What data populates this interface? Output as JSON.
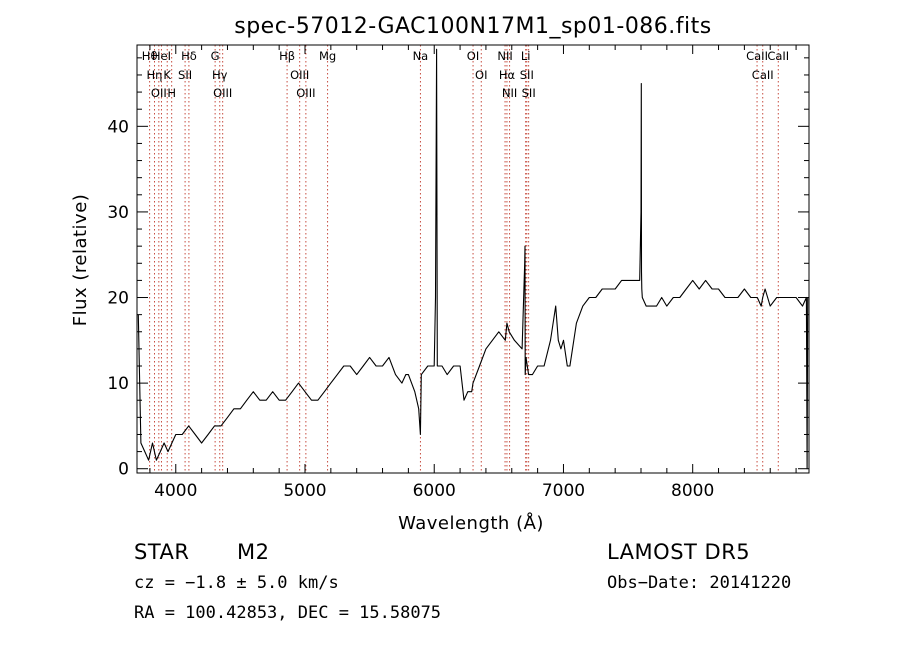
{
  "chart_data": {
    "type": "line",
    "title": "spec-57012-GAC100N17M1_sp01-086.fits",
    "xlabel": "Wavelength (Å)",
    "ylabel": "Flux (relative)",
    "xlim": [
      3700,
      8900
    ],
    "ylim": [
      -0.5,
      49.5
    ],
    "xticks": [
      {
        "value": 4000,
        "label": "4000"
      },
      {
        "value": 5000,
        "label": "5000"
      },
      {
        "value": 6000,
        "label": "6000"
      },
      {
        "value": 7000,
        "label": "7000"
      },
      {
        "value": 8000,
        "label": "8000"
      }
    ],
    "yticks": [
      {
        "value": 0,
        "label": "0"
      },
      {
        "value": 10,
        "label": "10"
      },
      {
        "value": 20,
        "label": "20"
      },
      {
        "value": 30,
        "label": "30"
      },
      {
        "value": 40,
        "label": "40"
      }
    ],
    "grid": false,
    "series": [
      {
        "x": [
          3710,
          3730,
          3760,
          3790,
          3820,
          3850,
          3880,
          3910,
          3940,
          3970,
          4000,
          4050,
          4100,
          4150,
          4200,
          4250,
          4300,
          4350,
          4400,
          4450,
          4500,
          4550,
          4600,
          4650,
          4700,
          4750,
          4800,
          4850,
          4900,
          4950,
          5000,
          5050,
          5100,
          5150,
          5200,
          5250,
          5300,
          5350,
          5400,
          5450,
          5500,
          5550,
          5600,
          5650,
          5700,
          5750,
          5780,
          5800,
          5850,
          5880,
          5893,
          5900,
          5950,
          6000,
          6010,
          6018,
          6024,
          6030,
          6060,
          6100,
          6150,
          6200,
          6230,
          6260,
          6290,
          6300,
          6350,
          6400,
          6450,
          6500,
          6550,
          6562,
          6580,
          6620,
          6680,
          6700,
          6702,
          6704,
          6710,
          6730,
          6760,
          6800,
          6850,
          6900,
          6940,
          6960,
          6980,
          7000,
          7030,
          7050,
          7080,
          7100,
          7150,
          7200,
          7250,
          7300,
          7350,
          7400,
          7450,
          7500,
          7550,
          7590,
          7600,
          7602,
          7604,
          7606,
          7610,
          7640,
          7680,
          7720,
          7760,
          7800,
          7850,
          7900,
          7950,
          8000,
          8050,
          8100,
          8150,
          8200,
          8250,
          8300,
          8350,
          8400,
          8450,
          8500,
          8530,
          8542,
          8560,
          8600,
          8650,
          8662,
          8700,
          8750,
          8800,
          8850,
          8880,
          8885,
          8890
        ],
        "y": [
          18,
          3,
          2,
          1,
          3,
          1,
          2,
          3,
          2,
          3,
          4,
          4,
          5,
          4,
          3,
          4,
          5,
          5,
          6,
          7,
          7,
          8,
          9,
          8,
          8,
          9,
          8,
          8,
          9,
          10,
          9,
          8,
          8,
          9,
          10,
          11,
          12,
          12,
          11,
          12,
          13,
          12,
          12,
          13,
          11,
          10,
          11,
          11,
          9,
          7,
          4,
          11,
          12,
          12,
          20,
          49,
          12,
          12,
          12,
          11,
          12,
          12,
          8,
          9,
          9,
          10,
          12,
          14,
          15,
          16,
          15,
          17,
          16,
          15,
          14,
          24,
          26,
          11,
          13,
          11,
          11,
          12,
          12,
          15,
          19,
          15,
          14,
          15,
          12,
          12,
          15,
          17,
          19,
          20,
          20,
          21,
          21,
          21,
          22,
          22,
          22,
          22,
          30,
          45,
          23,
          21,
          20,
          19,
          19,
          19,
          20,
          19,
          20,
          20,
          21,
          22,
          21,
          22,
          21,
          21,
          20,
          20,
          20,
          21,
          20,
          20,
          19,
          20,
          21,
          19,
          20,
          20,
          20,
          20,
          20,
          19,
          20,
          0,
          20
        ],
        "color": "#000000"
      }
    ],
    "lines": [
      {
        "x": 3797.9,
        "name": "Hθ"
      },
      {
        "x": 3835.4,
        "name": "Hη"
      },
      {
        "x": 3869.0,
        "name": "OII"
      },
      {
        "x": 3889.0,
        "name": "HeI"
      },
      {
        "x": 3933.7,
        "name": "K"
      },
      {
        "x": 3968.5,
        "name": "H"
      },
      {
        "x": 4101.7,
        "name": "Hδ"
      },
      {
        "x": 4072.0,
        "name": "SII"
      },
      {
        "x": 4304.4,
        "name": "G"
      },
      {
        "x": 4340.5,
        "name": "Hγ"
      },
      {
        "x": 4363.2,
        "name": "OIII"
      },
      {
        "x": 4861.3,
        "name": "Hβ"
      },
      {
        "x": 4959.0,
        "name": "OIII"
      },
      {
        "x": 5006.8,
        "name": "OIII"
      },
      {
        "x": 5175.0,
        "name": "Mg"
      },
      {
        "x": 5893.0,
        "name": "Na"
      },
      {
        "x": 6300.3,
        "name": "OI"
      },
      {
        "x": 6363.8,
        "name": "OI"
      },
      {
        "x": 6548.0,
        "name": "NII"
      },
      {
        "x": 6562.8,
        "name": "Hα"
      },
      {
        "x": 6583.4,
        "name": "NII"
      },
      {
        "x": 6707.8,
        "name": "Li"
      },
      {
        "x": 6716.4,
        "name": "SII"
      },
      {
        "x": 6730.8,
        "name": "SII"
      },
      {
        "x": 8498.0,
        "name": "CaII"
      },
      {
        "x": 8542.1,
        "name": "CaII"
      },
      {
        "x": 8662.1,
        "name": "CaII"
      }
    ]
  },
  "info": {
    "object_class": "STAR",
    "subclass": "M2",
    "survey": "LAMOST DR5",
    "cz": "cz = −1.8 ± 5.0 km/s",
    "obs_date": "Obs−Date: 20141220",
    "coords": "RA = 100.42853, DEC =  15.58075"
  }
}
